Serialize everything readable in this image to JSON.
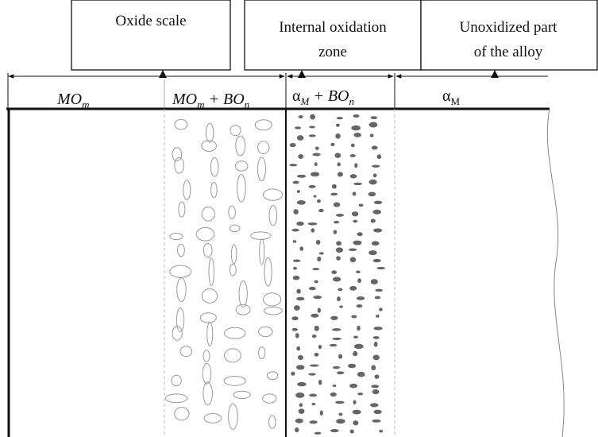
{
  "boxes": [
    {
      "lines": [
        "Oxide scale"
      ]
    },
    {
      "lines": [
        "Internal oxidation",
        "zone"
      ]
    },
    {
      "lines": [
        "Unoxidized part",
        "of the alloy"
      ]
    }
  ],
  "regions": [
    {
      "label": [
        "MO",
        "m"
      ]
    },
    {
      "label": [
        "MO",
        "m",
        " + BO",
        "n"
      ]
    },
    {
      "label": [
        "α",
        "M",
        " + BO",
        "n"
      ]
    },
    {
      "label": [
        "α",
        "M"
      ]
    }
  ]
}
